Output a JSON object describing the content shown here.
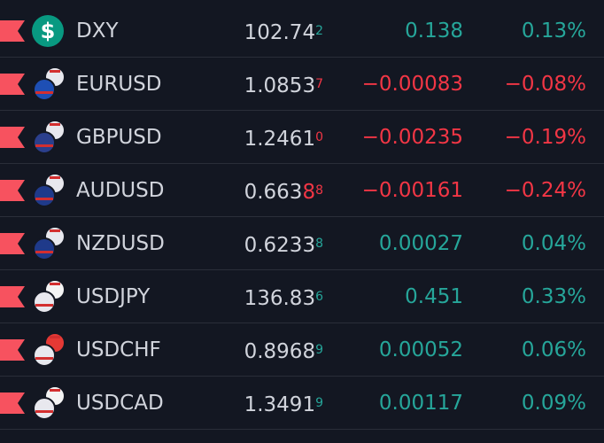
{
  "watchlist": {
    "rows": [
      {
        "symbol": "DXY",
        "icon_label": "$",
        "icon_colors": [
          "#089981"
        ],
        "price": [
          "102.74",
          "2"
        ],
        "change": "0.138",
        "change_percent": "0.13%",
        "color": "#26a69a"
      },
      {
        "symbol": "EURUSD",
        "icon_colors": [
          "#1e4fb4",
          "#e8e8ee"
        ],
        "price": [
          "1.0853",
          "7"
        ],
        "change": "−0.00083",
        "change_percent": "−0.08%",
        "color": "#f23645"
      },
      {
        "symbol": "GBPUSD",
        "icon_colors": [
          "#2b3f8c",
          "#e8e8ee"
        ],
        "price": [
          "1.2461",
          "0"
        ],
        "change": "−0.00235",
        "change_percent": "−0.19%",
        "color": "#f23645"
      },
      {
        "symbol": "AUDUSD",
        "icon_colors": [
          "#1f3a8a",
          "#e8e8ee"
        ],
        "price": [
          "0.663",
          "8",
          "8"
        ],
        "change": "−0.00161",
        "change_percent": "−0.24%",
        "color": "#f23645"
      },
      {
        "symbol": "NZDUSD",
        "icon_colors": [
          "#1f3a8a",
          "#e8e8ee"
        ],
        "price": [
          "0.6233",
          "8"
        ],
        "change": "0.00027",
        "change_percent": "0.04%",
        "color": "#26a69a"
      },
      {
        "symbol": "USDJPY",
        "icon_colors": [
          "#e8e8ee",
          "#f4f4f4"
        ],
        "price": [
          "136.83",
          "6"
        ],
        "change": "0.451",
        "change_percent": "0.33%",
        "color": "#26a69a"
      },
      {
        "symbol": "USDCHF",
        "icon_colors": [
          "#e8e8ee",
          "#e53935"
        ],
        "price": [
          "0.8968",
          "9"
        ],
        "change": "0.00052",
        "change_percent": "0.06%",
        "color": "#26a69a"
      },
      {
        "symbol": "USDCAD",
        "icon_colors": [
          "#e8e8ee",
          "#f4f4f4"
        ],
        "price": [
          "1.3491",
          "9"
        ],
        "change": "0.00117",
        "change_percent": "0.09%",
        "color": "#26a69a"
      }
    ]
  }
}
